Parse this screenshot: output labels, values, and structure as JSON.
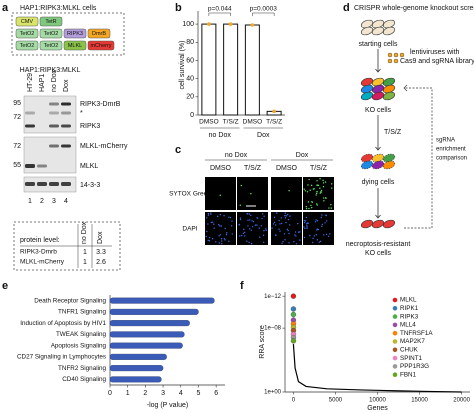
{
  "panel_labels": [
    "a",
    "b",
    "c",
    "d",
    "e",
    "f"
  ],
  "panel_a": {
    "title": "HAP1:RIPK3:MLKL cells",
    "constructs": [
      [
        "CMV",
        "TetR"
      ],
      [
        "TetO2",
        "TetO2",
        "RIPK3",
        "DmrB"
      ],
      [
        "TetO2",
        "TetO2",
        "MLKL",
        "mCherry"
      ]
    ],
    "blot_title": "HAP1:RIPK3:MLKL",
    "lanes": [
      "HT-29",
      "HAP1",
      "no Dox",
      "Dox"
    ],
    "lane_numbers": [
      "1",
      "2",
      "3",
      "4"
    ],
    "markers": [
      "95",
      "72",
      "72",
      "55"
    ],
    "bands": [
      "RIPK3-DmrB",
      "*",
      "RIPK3",
      "MLKL-mCherry",
      "MLKL",
      "14-3-3"
    ],
    "table": {
      "header": "protein level:",
      "columns": [
        "no Dox",
        "Dox"
      ],
      "rows": [
        [
          "RIPK3-Dmrb",
          "1",
          "3.3"
        ],
        [
          "MLKL-mCherry",
          "1",
          "2.6"
        ]
      ]
    }
  },
  "panel_c": {
    "groups": [
      "no Dox",
      "Dox"
    ],
    "columns": [
      "DMSO",
      "T/S/Z",
      "DMSO",
      "T/S/Z"
    ],
    "rows": [
      "SYTOX Green",
      "DAPI"
    ]
  },
  "panel_d": {
    "title": "CRISPR whole-genome knockout screen",
    "starting": "starting cells",
    "lentivirus": [
      "lentiviruses with",
      "Cas9 and sgRNA library"
    ],
    "ko": "KO cells",
    "treatment": "T/S/Z",
    "dying": "dying cells",
    "resistant": [
      "necroptosis-resistant",
      "KO cells"
    ],
    "comparison": [
      "sgRNA",
      "enrichment",
      "comparison"
    ]
  },
  "chart_data": [
    {
      "type": "bar",
      "categories": [
        "DMSO",
        "T/S/Z",
        "DMSO",
        "T/S/Z"
      ],
      "groups": [
        "no Dox",
        "Dox"
      ],
      "values": [
        100,
        100,
        99,
        4
      ],
      "color": "#ffffff",
      "dot_color": "#f5a623",
      "ylabel": "cell survival (%)",
      "ylim": [
        0,
        110
      ],
      "yticks": [
        0,
        20,
        40,
        60,
        80,
        100
      ],
      "annotations": [
        "p=0.044",
        "p=0.0003"
      ]
    },
    {
      "type": "bar",
      "orientation": "horizontal",
      "categories": [
        "Death Receptor Signaling",
        "TNFR1 Signaling",
        "Induction of Apoptosis by HIV1",
        "TWEAK Signaling",
        "Apoptosis Signaling",
        "CD27 Signaling in Lymphocytes",
        "TNFR2 Signaling",
        "CD40 Signaling"
      ],
      "values": [
        5.9,
        5.0,
        4.5,
        4.2,
        4.1,
        3.2,
        3.0,
        2.9
      ],
      "color": "#3b5bb8",
      "xlabel": "-log (P value)",
      "xlim": [
        0,
        6.5
      ],
      "xticks": [
        0,
        1,
        2,
        3,
        4,
        5,
        6
      ]
    },
    {
      "type": "scatter",
      "ylabel": "RRA score",
      "xlabel": "Genes",
      "log_y": true,
      "legend": "upper right",
      "xlim": [
        -1000,
        21000
      ],
      "xticks": [
        0,
        5000,
        10000,
        15000,
        20000
      ],
      "ylim": [
        1,
        3e-13
      ],
      "yticks": [
        {
          "value": 1e-12,
          "label": "1e−12"
        },
        {
          "value": 1e-08,
          "label": "1e−08"
        },
        {
          "value": 1,
          "label": "1e+00"
        }
      ],
      "series": [
        {
          "name": "MLKL",
          "color": "#e41a1c",
          "x": [
            1
          ],
          "values": [
            1e-12
          ]
        },
        {
          "name": "RIPK1",
          "color": "#377eb8",
          "x": [
            2
          ],
          "values": [
            4e-11
          ]
        },
        {
          "name": "RIPK3",
          "color": "#4daf4a",
          "x": [
            3
          ],
          "values": [
            2e-10
          ]
        },
        {
          "name": "MLL4",
          "color": "#984ea3",
          "x": [
            4
          ],
          "values": [
            1e-09
          ]
        },
        {
          "name": "TNFRSF1A",
          "color": "#ff7f00",
          "x": [
            5
          ],
          "values": [
            3e-09
          ]
        },
        {
          "name": "MAP2K7",
          "color": "#b8b82a",
          "x": [
            6
          ],
          "values": [
            8e-09
          ]
        },
        {
          "name": "CHUK",
          "color": "#a65628",
          "x": [
            7
          ],
          "values": [
            2e-08
          ]
        },
        {
          "name": "SPINT1",
          "color": "#f781bf",
          "x": [
            8
          ],
          "values": [
            6e-08
          ]
        },
        {
          "name": "PPP1R3G",
          "color": "#999999",
          "x": [
            9
          ],
          "values": [
            1.5e-07
          ]
        },
        {
          "name": "FBN1",
          "color": "#66a61e",
          "x": [
            10
          ],
          "values": [
            4e-07
          ]
        }
      ],
      "curve": {
        "color": "#000000",
        "x": [
          0,
          200,
          600,
          1500,
          4000,
          8000,
          12000,
          16000,
          20000
        ],
        "values": [
          1e-06,
          0.001,
          0.05,
          0.2,
          0.4,
          0.55,
          0.7,
          0.85,
          1
        ]
      }
    }
  ]
}
